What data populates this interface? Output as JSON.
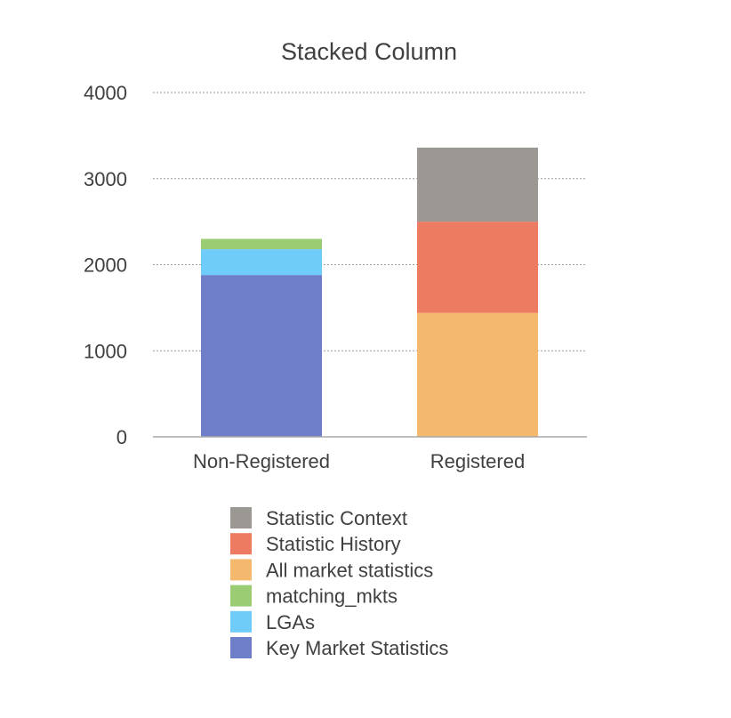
{
  "chart_data": {
    "type": "bar",
    "stacked": true,
    "title": "Stacked Column",
    "xlabel": "",
    "ylabel": "",
    "categories": [
      "Non-Registered",
      "Registered"
    ],
    "ylim": [
      0,
      4000
    ],
    "yticks": [
      0,
      1000,
      2000,
      3000,
      4000
    ],
    "grid": true,
    "legend_position": "bottom",
    "series": [
      {
        "name": "Key Market Statistics",
        "color": "#6f7ec8",
        "values": [
          1880,
          0
        ]
      },
      {
        "name": "LGAs",
        "color": "#6fcbf8",
        "values": [
          300,
          0
        ]
      },
      {
        "name": "matching_mkts",
        "color": "#9acc73",
        "values": [
          120,
          0
        ]
      },
      {
        "name": "All market statistics",
        "color": "#f5b96e",
        "values": [
          0,
          1440
        ]
      },
      {
        "name": "Statistic History",
        "color": "#ed7b61",
        "values": [
          0,
          1060
        ]
      },
      {
        "name": "Statistic Context",
        "color": "#9b9893",
        "values": [
          0,
          860
        ]
      }
    ]
  }
}
